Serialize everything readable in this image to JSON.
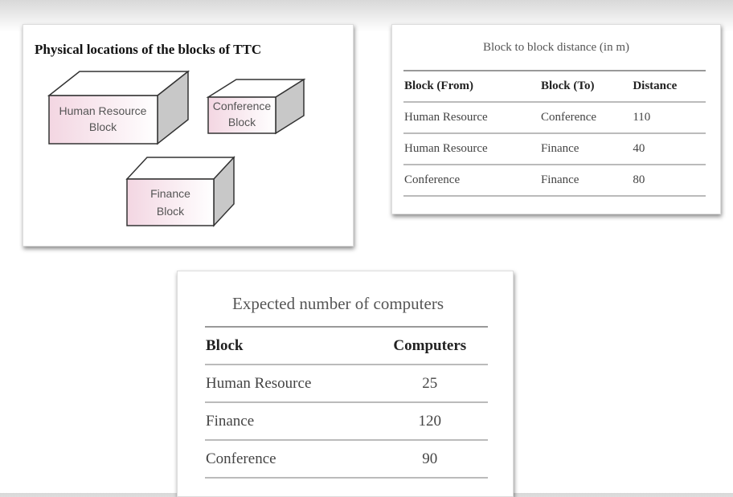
{
  "diagram": {
    "title": "Physical locations of the blocks of TTC",
    "blocks": [
      {
        "label": [
          "Human Resource",
          "Block"
        ]
      },
      {
        "label": [
          "Conference",
          "Block"
        ]
      },
      {
        "label": [
          "Finance",
          "Block"
        ]
      }
    ]
  },
  "distance_table": {
    "title": "Block to block distance (in m)",
    "header": [
      "Block (From)",
      "Block (To)",
      "Distance"
    ],
    "rows": [
      [
        "Human Resource",
        "Conference",
        110
      ],
      [
        "Human Resource",
        "Finance",
        40
      ],
      [
        "Conference",
        "Finance",
        80
      ]
    ]
  },
  "computers_table": {
    "title": "Expected number of computers",
    "header": [
      "Block",
      "Computers"
    ],
    "rows": [
      [
        "Human Resource",
        25
      ],
      [
        "Finance",
        120
      ],
      [
        "Conference",
        90
      ]
    ]
  }
}
